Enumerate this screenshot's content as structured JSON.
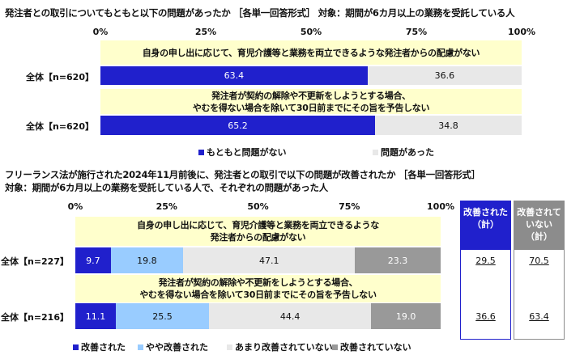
{
  "chart_data": [
    {
      "type": "bar",
      "stacked": true,
      "orientation": "horizontal",
      "title": "発注者との取引についてもともと以下の問題があったか ［各単一回答形式］ 対象：期間が6カ月以上の業務を受託している人",
      "xlim": [
        0,
        100
      ],
      "ticks": [
        "0%",
        "25%",
        "50%",
        "75%",
        "100%"
      ],
      "rows": [
        {
          "question": "自身の申し出に応じて、育児介護等と業務を両立できるような発注者からの配慮がない",
          "label": "全体【n=620】",
          "values": [
            63.4,
            36.6
          ],
          "labels": [
            "63.4",
            "36.6"
          ]
        },
        {
          "question": "発注者が契約の解除や不更新をしようとする場合、\nやむを得ない場合を除いて30日前までにその旨を予告しない",
          "label": "全体【n=620】",
          "values": [
            65.2,
            34.8
          ],
          "labels": [
            "65.2",
            "34.8"
          ]
        }
      ],
      "series": [
        {
          "name": "もともと問題がない",
          "color": "#2020cc"
        },
        {
          "name": "問題があった",
          "color": "#e8e8e8"
        }
      ],
      "legend": "bottom"
    },
    {
      "type": "bar",
      "stacked": true,
      "orientation": "horizontal",
      "title": "フリーランス法が施行された2024年11月前後に、発注者との取引で以下の問題が改善されたか ［各単一回答形式］",
      "subtitle": "対象：期間が6カ月以上の業務を受託している人で、それぞれの問題があった人",
      "xlim": [
        0,
        100
      ],
      "ticks": [
        "0%",
        "25%",
        "50%",
        "75%",
        "100%"
      ],
      "rows": [
        {
          "question": "自身の申し出に応じて、育児介護等と業務を両立できるような\n発注者からの配慮がない",
          "label": "全体【n=227】",
          "values": [
            9.7,
            19.8,
            47.1,
            23.3
          ],
          "labels": [
            "9.7",
            "19.8",
            "47.1",
            "23.3"
          ],
          "improved_total": "29.5",
          "not_improved_total": "70.5"
        },
        {
          "question": "発注者が契約の解除や不更新をしようとする場合、\nやむを得ない場合を除いて30日前までにその旨を予告しない",
          "label": "全体【n=216】",
          "values": [
            11.1,
            25.5,
            44.4,
            19.0
          ],
          "labels": [
            "11.1",
            "25.5",
            "44.4",
            "19.0"
          ],
          "improved_total": "36.6",
          "not_improved_total": "63.4"
        }
      ],
      "series": [
        {
          "name": "改善された",
          "color": "#2020cc"
        },
        {
          "name": "やや改善された",
          "color": "#99ccff"
        },
        {
          "name": "あまり改善されていない",
          "color": "#e8e8e8"
        },
        {
          "name": "改善されていない",
          "color": "#999999"
        }
      ],
      "summary_headers": {
        "improved": "改善された\n（計）",
        "not_improved": "改善されて\nいない\n（計）"
      },
      "legend": "bottom"
    }
  ]
}
